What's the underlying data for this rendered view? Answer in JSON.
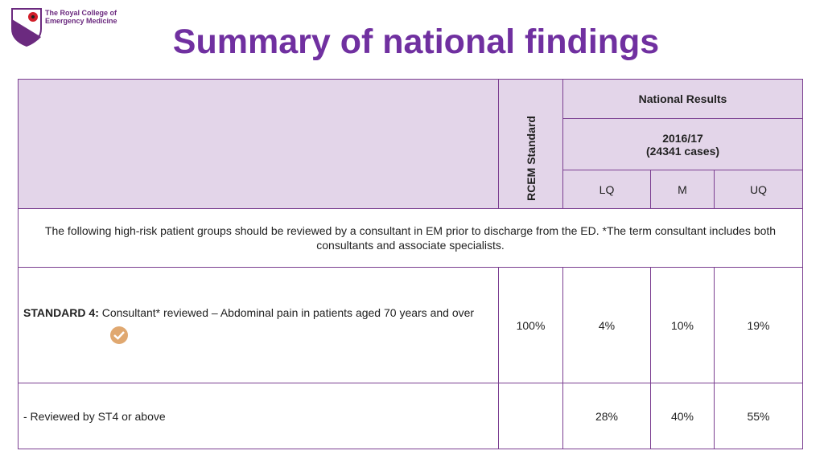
{
  "logo": {
    "lines": [
      "The Royal College of",
      "Emergency Medicine"
    ]
  },
  "title": "Summary of national findings",
  "table": {
    "header": {
      "standard": "RCEM Standard",
      "group": "National Results",
      "period": "2016/17",
      "cases": "(24341 cases)",
      "columns": [
        "LQ",
        "M",
        "UQ"
      ]
    },
    "note": "The following high-risk patient groups should be reviewed by a consultant in EM prior to discharge from the  ED.  *The term consultant includes both consultants and associate specialists.",
    "rows": [
      {
        "label_prefix": "STANDARD 4:",
        "label": "Consultant* reviewed – Abdominal pain in patients aged 70 years and over",
        "standard": "100%",
        "values": [
          "4%",
          "10%",
          "19%"
        ]
      },
      {
        "label": "- Reviewed by ST4 or above",
        "values": [
          "28%",
          "40%",
          "55%"
        ]
      }
    ]
  }
}
